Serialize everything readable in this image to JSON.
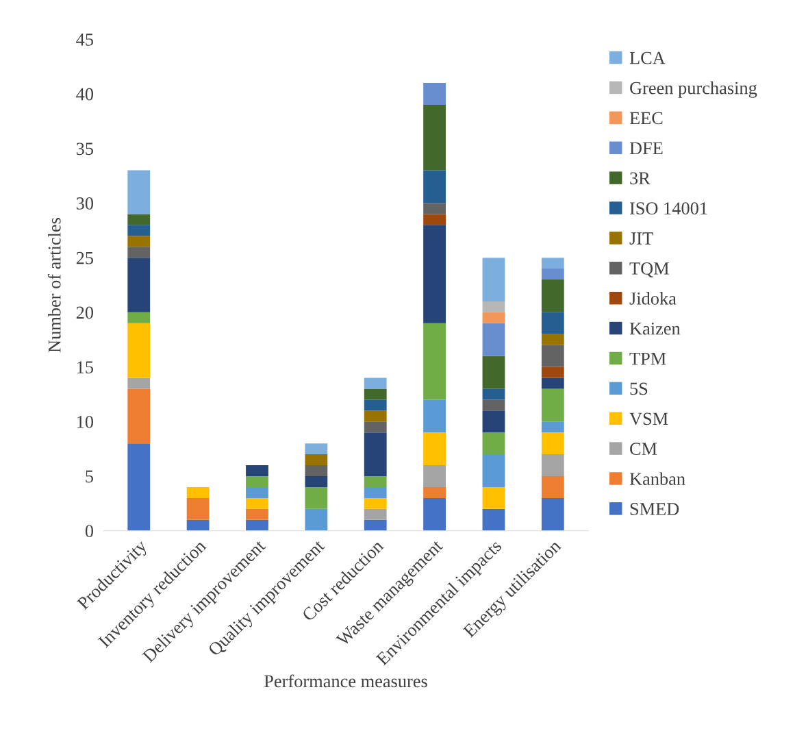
{
  "chart_data": {
    "type": "bar",
    "stacked": true,
    "xlabel": "Performance measures",
    "ylabel": "Number of articles",
    "categories": [
      "Productivity",
      "Inventory reduction",
      "Delivery improvement",
      "Quality improvement",
      "Cost reduction",
      "Waste management",
      "Environmental impacts",
      "Energy utilisation"
    ],
    "ylim": [
      0,
      45
    ],
    "yticks": [
      0,
      5,
      10,
      15,
      20,
      25,
      30,
      35,
      40,
      45
    ],
    "grid": false,
    "legend": "right",
    "series": [
      {
        "name": "SMED",
        "color": "#4472c4",
        "values": [
          8,
          1,
          1,
          0,
          1,
          3,
          2,
          3
        ]
      },
      {
        "name": "Kanban",
        "color": "#ed7d31",
        "values": [
          5,
          2,
          1,
          0,
          0,
          1,
          0,
          2
        ]
      },
      {
        "name": "CM",
        "color": "#a5a5a5",
        "values": [
          1,
          0,
          0,
          0,
          1,
          2,
          0,
          2
        ]
      },
      {
        "name": "VSM",
        "color": "#ffc000",
        "values": [
          5,
          1,
          1,
          0,
          1,
          3,
          2,
          2
        ]
      },
      {
        "name": "5S",
        "color": "#5b9bd5",
        "values": [
          0,
          0,
          1,
          2,
          1,
          3,
          3,
          1
        ]
      },
      {
        "name": "TPM",
        "color": "#70ad47",
        "values": [
          1,
          0,
          1,
          2,
          1,
          7,
          2,
          3
        ]
      },
      {
        "name": "Kaizen",
        "color": "#264478",
        "values": [
          5,
          0,
          1,
          1,
          4,
          9,
          2,
          1
        ]
      },
      {
        "name": "Jidoka",
        "color": "#9e480e",
        "values": [
          0,
          0,
          0,
          0,
          0,
          1,
          0,
          1
        ]
      },
      {
        "name": "TQM",
        "color": "#636363",
        "values": [
          1,
          0,
          0,
          1,
          1,
          1,
          1,
          2
        ]
      },
      {
        "name": "JIT",
        "color": "#997300",
        "values": [
          1,
          0,
          0,
          1,
          1,
          0,
          0,
          1
        ]
      },
      {
        "name": "ISO 14001",
        "color": "#255e91",
        "values": [
          1,
          0,
          0,
          0,
          1,
          3,
          1,
          2
        ]
      },
      {
        "name": "3R",
        "color": "#43682b",
        "values": [
          1,
          0,
          0,
          0,
          1,
          6,
          3,
          3
        ]
      },
      {
        "name": "DFE",
        "color": "#698ed0",
        "values": [
          0,
          0,
          0,
          0,
          0,
          2,
          3,
          1
        ]
      },
      {
        "name": "EEC",
        "color": "#f1975a",
        "values": [
          0,
          0,
          0,
          0,
          0,
          0,
          1,
          0
        ]
      },
      {
        "name": "Green purchasing",
        "color": "#b7b7b7",
        "values": [
          0,
          0,
          0,
          0,
          0,
          0,
          1,
          0
        ]
      },
      {
        "name": "LCA",
        "color": "#7cafdd",
        "values": [
          4,
          0,
          0,
          1,
          1,
          0,
          4,
          1
        ]
      }
    ]
  }
}
